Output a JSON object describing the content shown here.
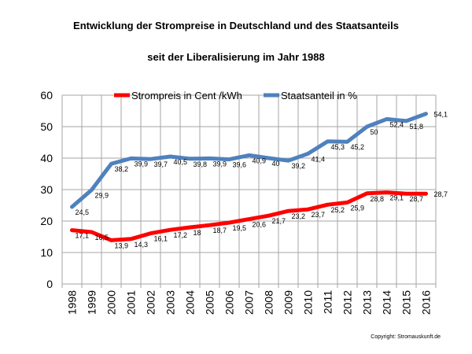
{
  "chart_data": {
    "type": "line",
    "title": "Entwicklung der Strompreise in Deutschland und des Staatsanteils",
    "subtitle": "seit der Liberalisierung im Jahr 1988",
    "categories": [
      "1998",
      "1999",
      "2000",
      "2001",
      "2002",
      "2003",
      "2004",
      "2005",
      "2006",
      "2007",
      "2008",
      "2009",
      "2010",
      "2011",
      "2012",
      "2013",
      "2014",
      "2015",
      "2016"
    ],
    "series": [
      {
        "name": "Strompreis in Cent /kWh",
        "color": "#ff0000",
        "values": [
          17.1,
          16.5,
          13.9,
          14.3,
          16.1,
          17.2,
          18,
          18.7,
          19.5,
          20.6,
          21.7,
          23.2,
          23.7,
          25.2,
          25.9,
          28.8,
          29.1,
          28.7,
          28.7
        ],
        "labels": [
          "17,1",
          "16,5",
          "13,9",
          "14,3",
          "16,1",
          "17,2",
          "18",
          "18,7",
          "19,5",
          "20,6",
          "21,7",
          "23,2",
          "23,7",
          "25,2",
          "25,9",
          "28,8",
          "29,1",
          "28,7",
          "28,7"
        ]
      },
      {
        "name": "Staatsanteil in %",
        "color": "#4f81bd",
        "values": [
          24.5,
          29.9,
          38.2,
          39.9,
          39.7,
          40.5,
          39.8,
          39.9,
          39.6,
          40.9,
          40,
          39.2,
          41.4,
          45.3,
          45.2,
          50,
          52.4,
          51.8,
          54.1
        ],
        "labels": [
          "24,5",
          "29,9",
          "38,2",
          "39,9",
          "39,7",
          "40,5",
          "39,8",
          "39,9",
          "39,6",
          "40,9",
          "40",
          "39,2",
          "41,4",
          "45,3",
          "45,2",
          "50",
          "52,4",
          "51,8",
          "54,1"
        ]
      }
    ],
    "yticks": [
      "0",
      "10",
      "20",
      "30",
      "40",
      "50",
      "60"
    ],
    "ylim": [
      0,
      60
    ],
    "grid": true,
    "legend": "top",
    "xlabel": "",
    "ylabel": ""
  },
  "copyright": "Copyright: Stromauskunft.de"
}
